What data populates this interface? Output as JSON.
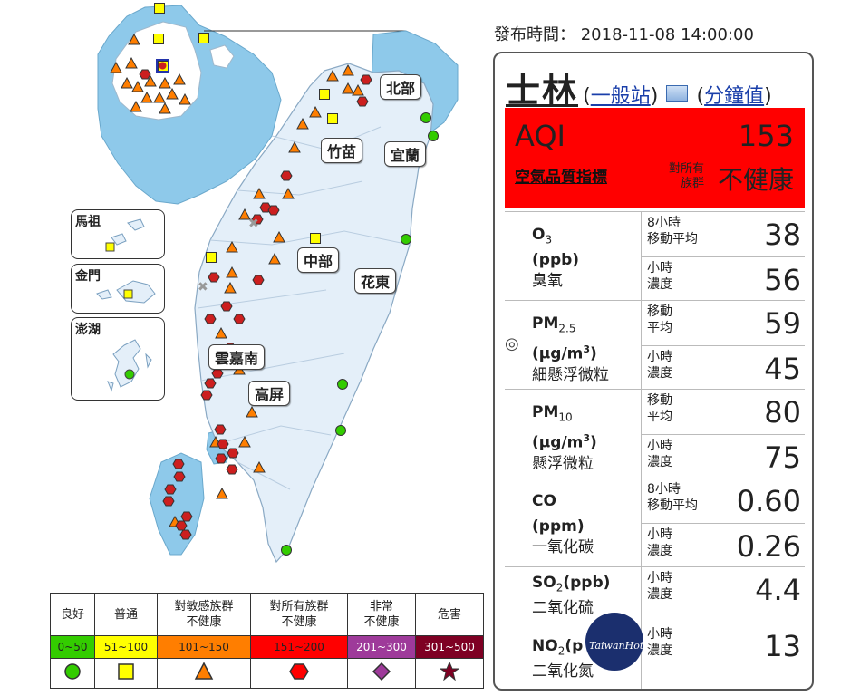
{
  "publish": {
    "label": "發布時間：",
    "datetime": "2018-11-08 14:00:00"
  },
  "station": {
    "name": "士林",
    "type_link": "一般站",
    "minute_link": "分鐘值",
    "open_paren": "(",
    "close_paren": ")"
  },
  "aqi": {
    "label": "AQI",
    "value": "153",
    "description": "空氣品質指標",
    "target": "對所有族群",
    "status": "不健康",
    "color": "#ff0000"
  },
  "pollutants": [
    {
      "formula": "O",
      "sub": "3",
      "sup": "",
      "unit_pre": "(ppb)",
      "unit_mid": "",
      "unit_post": "",
      "zh": "臭氧",
      "marker": "",
      "readings": [
        {
          "label": "8小時\n移動平均",
          "value": "38"
        },
        {
          "label": "小時\n濃度",
          "value": "56"
        }
      ]
    },
    {
      "formula": "PM",
      "sub": "2.5",
      "sup": "3",
      "unit_pre": "(μg/m",
      "unit_mid": "3",
      "unit_post": ")",
      "zh": "細懸浮微粒",
      "marker": "◎",
      "readings": [
        {
          "label": "移動\n平均",
          "value": "59"
        },
        {
          "label": "小時\n濃度",
          "value": "45"
        }
      ]
    },
    {
      "formula": "PM",
      "sub": "10",
      "sup": "3",
      "unit_pre": "(μg/m",
      "unit_mid": "3",
      "unit_post": ")",
      "zh": "懸浮微粒",
      "marker": "",
      "readings": [
        {
          "label": "移動\n平均",
          "value": "80"
        },
        {
          "label": "小時\n濃度",
          "value": "75"
        }
      ]
    },
    {
      "formula": "CO",
      "sub": "",
      "sup": "",
      "unit_pre": "(ppm)",
      "unit_mid": "",
      "unit_post": "",
      "zh": "一氧化碳",
      "marker": "",
      "readings": [
        {
          "label": "8小時\n移動平均",
          "value": "0.60"
        },
        {
          "label": "小時\n濃度",
          "value": "0.26"
        }
      ]
    },
    {
      "formula": "SO",
      "sub": "2",
      "sup": "",
      "unit_pre": "(ppb)",
      "unit_mid": "",
      "unit_post": "",
      "zh": "二氧化硫",
      "marker": "",
      "readings": [
        {
          "label": "小時\n濃度",
          "value": "4.4"
        }
      ]
    },
    {
      "formula": "NO",
      "sub": "2",
      "sup": "",
      "unit_pre": "(p",
      "unit_mid": "",
      "unit_post": "",
      "zh": "二氧化氮",
      "marker": "",
      "readings": [
        {
          "label": "小時\n濃度",
          "value": "13"
        }
      ]
    }
  ],
  "legend": [
    {
      "label": "良好",
      "range": "0~50",
      "color": "#33cc00",
      "text_color": "#222",
      "shape": "circle"
    },
    {
      "label": "普通",
      "range": "51~100",
      "color": "#ffff00",
      "text_color": "#222",
      "shape": "square"
    },
    {
      "label": "對敏感族群\n不健康",
      "range": "101~150",
      "color": "#ff7e00",
      "text_color": "#222",
      "shape": "triangle"
    },
    {
      "label": "對所有族群\n不健康",
      "range": "151~200",
      "color": "#ff0000",
      "text_color": "#222",
      "shape": "hexagon"
    },
    {
      "label": "非常\n不健康",
      "range": "201~300",
      "color": "#9e3a9a",
      "text_color": "#fff",
      "shape": "diamond"
    },
    {
      "label": "危害",
      "range": "301~500",
      "color": "#7e0023",
      "text_color": "#fff",
      "shape": "star"
    }
  ],
  "map": {
    "regions": [
      "北部",
      "竹苗",
      "宜蘭",
      "中部",
      "花東",
      "雲嘉南",
      "高屏"
    ],
    "insets": [
      "馬祖",
      "金門",
      "澎湖"
    ],
    "colors": {
      "sea": "#d6e8f5",
      "land": "#ffffff",
      "taiwan_land": "#e4eff9",
      "highlight_sea": "#8ec9ea"
    }
  },
  "watermark": {
    "text": "TaiwanHot"
  }
}
